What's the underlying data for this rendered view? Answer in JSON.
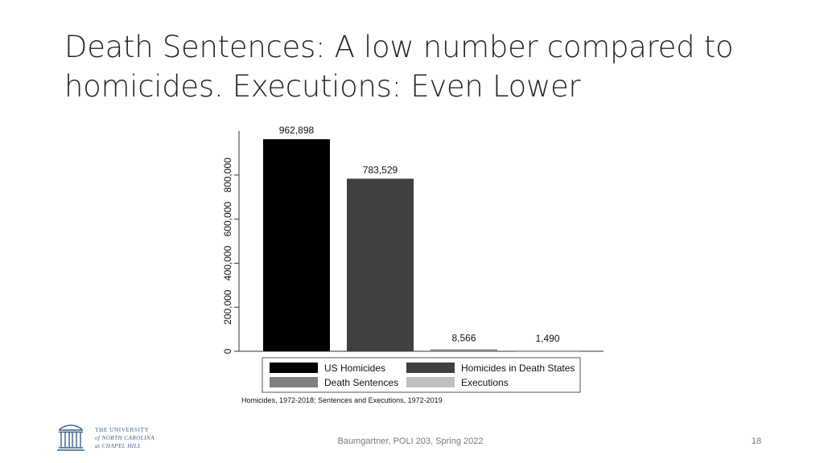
{
  "slide": {
    "title_line1": "Death Sentences: A low number compared to",
    "title_line2": "homicides. Executions: Even Lower",
    "footer": "Baumgartner, POLI 203, Spring 2022",
    "page_number": "18",
    "logo": {
      "line1": "THE UNIVERSITY",
      "line2": "of NORTH CAROLINA",
      "line3": "at CHAPEL HILL",
      "icon": "old-well-icon",
      "color": "#3c5f87"
    }
  },
  "chart_data": {
    "type": "bar",
    "categories": [
      "US Homicides",
      "Homicides in Death States",
      "Death Sentences",
      "Executions"
    ],
    "values": [
      962898,
      783529,
      8566,
      1490
    ],
    "value_labels": [
      "962,898",
      "783,529",
      "8,566",
      "1,490"
    ],
    "colors": [
      "#000000",
      "#404040",
      "#808080",
      "#c0c0c0"
    ],
    "y_ticks": [
      "0",
      "200,000",
      "400,000",
      "600,000",
      "800,000"
    ],
    "y_tick_values": [
      0,
      200000,
      400000,
      600000,
      800000
    ],
    "ylim": [
      0,
      1000000
    ],
    "grid": false,
    "legend_position": "bottom",
    "note": "Homicides, 1972-2018; Sentences and Executions, 1972-2019"
  }
}
